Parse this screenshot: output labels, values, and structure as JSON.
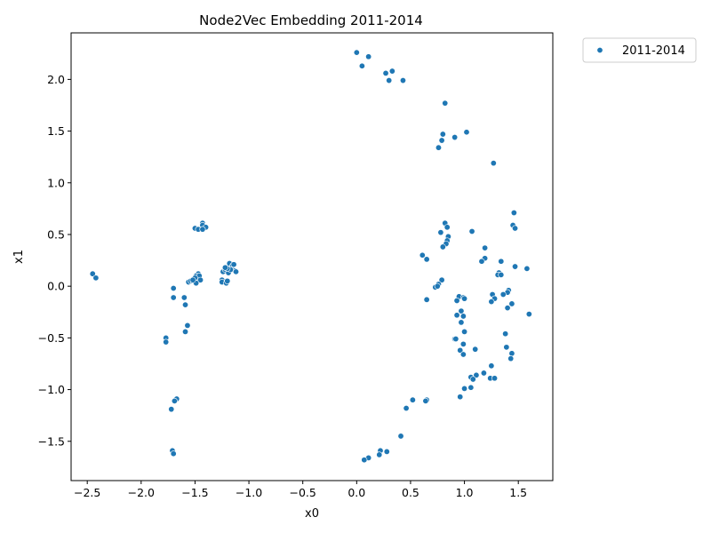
{
  "chart_data": {
    "type": "scatter",
    "title": "Node2Vec Embedding 2011-2014",
    "xlabel": "x0",
    "ylabel": "x1",
    "xlim": [
      -2.65,
      1.82
    ],
    "ylim": [
      -1.88,
      2.45
    ],
    "xticks": [
      -2.5,
      -2.0,
      -1.5,
      -1.0,
      -0.5,
      0.0,
      0.5,
      1.0,
      1.5
    ],
    "xtick_labels": [
      "−2.5",
      "−2.0",
      "−1.5",
      "−1.0",
      "−0.5",
      "0.0",
      "0.5",
      "1.0",
      "1.5"
    ],
    "yticks": [
      -1.5,
      -1.0,
      -0.5,
      0.0,
      0.5,
      1.0,
      1.5,
      2.0
    ],
    "ytick_labels": [
      "−1.5",
      "−1.0",
      "−0.5",
      "0.0",
      "0.5",
      "1.0",
      "1.5",
      "2.0"
    ],
    "grid": false,
    "legend_position": "outside-top-right",
    "series": [
      {
        "name": "2011-2014",
        "color": "#1f77b4",
        "points": [
          [
            0.0,
            2.26
          ],
          [
            0.11,
            2.22
          ],
          [
            0.05,
            2.13
          ],
          [
            0.27,
            2.06
          ],
          [
            0.33,
            2.08
          ],
          [
            0.3,
            1.99
          ],
          [
            0.43,
            1.99
          ],
          [
            0.82,
            1.77
          ],
          [
            1.02,
            1.49
          ],
          [
            0.8,
            1.47
          ],
          [
            0.91,
            1.44
          ],
          [
            0.79,
            1.41
          ],
          [
            0.76,
            1.34
          ],
          [
            1.27,
            1.19
          ],
          [
            -2.45,
            0.12
          ],
          [
            -2.42,
            0.08
          ],
          [
            -1.7,
            -0.02
          ],
          [
            -1.7,
            -0.11
          ],
          [
            -1.6,
            -0.11
          ],
          [
            -1.59,
            -0.18
          ],
          [
            -1.57,
            -0.38
          ],
          [
            -1.59,
            -0.44
          ],
          [
            -1.77,
            -0.5
          ],
          [
            -1.77,
            -0.54
          ],
          [
            -1.67,
            -1.09
          ],
          [
            -1.69,
            -1.11
          ],
          [
            -1.72,
            -1.19
          ],
          [
            -1.71,
            -1.59
          ],
          [
            -1.7,
            -1.62
          ],
          [
            -1.5,
            0.56
          ],
          [
            -1.47,
            0.55
          ],
          [
            -1.43,
            0.61
          ],
          [
            -1.43,
            0.59
          ],
          [
            -1.4,
            0.57
          ],
          [
            -1.43,
            0.55
          ],
          [
            -1.56,
            0.04
          ],
          [
            -1.54,
            0.05
          ],
          [
            -1.52,
            0.05
          ],
          [
            -1.5,
            0.04
          ],
          [
            -1.48,
            0.07
          ],
          [
            -1.47,
            0.12
          ],
          [
            -1.49,
            0.1
          ],
          [
            -1.46,
            0.1
          ],
          [
            -1.5,
            0.08
          ],
          [
            -1.45,
            0.06
          ],
          [
            -1.49,
            0.03
          ],
          [
            -1.52,
            0.06
          ],
          [
            -1.25,
            0.06
          ],
          [
            -1.25,
            0.04
          ],
          [
            -1.24,
            0.14
          ],
          [
            -1.22,
            0.16
          ],
          [
            -1.21,
            0.03
          ],
          [
            -1.2,
            0.05
          ],
          [
            -1.18,
            0.22
          ],
          [
            -1.16,
            0.18
          ],
          [
            -1.15,
            0.2
          ],
          [
            -1.14,
            0.21
          ],
          [
            -1.13,
            0.15
          ],
          [
            -1.12,
            0.14
          ],
          [
            -1.19,
            0.13
          ],
          [
            -1.17,
            0.16
          ],
          [
            -1.2,
            0.17
          ],
          [
            -1.22,
            0.18
          ],
          [
            1.46,
            0.71
          ],
          [
            1.45,
            0.59
          ],
          [
            1.47,
            0.56
          ],
          [
            0.82,
            0.61
          ],
          [
            0.84,
            0.57
          ],
          [
            0.78,
            0.52
          ],
          [
            1.07,
            0.53
          ],
          [
            0.85,
            0.48
          ],
          [
            0.84,
            0.44
          ],
          [
            0.83,
            0.41
          ],
          [
            0.8,
            0.38
          ],
          [
            1.19,
            0.37
          ],
          [
            0.61,
            0.3
          ],
          [
            0.65,
            0.26
          ],
          [
            1.19,
            0.27
          ],
          [
            1.16,
            0.24
          ],
          [
            1.34,
            0.24
          ],
          [
            1.47,
            0.19
          ],
          [
            1.58,
            0.17
          ],
          [
            1.32,
            0.13
          ],
          [
            1.31,
            0.11
          ],
          [
            1.34,
            0.11
          ],
          [
            0.79,
            0.06
          ],
          [
            0.76,
            0.02
          ],
          [
            0.73,
            -0.01
          ],
          [
            0.75,
            0.0
          ],
          [
            1.41,
            -0.04
          ],
          [
            1.4,
            -0.06
          ],
          [
            1.36,
            -0.08
          ],
          [
            1.26,
            -0.08
          ],
          [
            0.95,
            -0.1
          ],
          [
            0.99,
            -0.11
          ],
          [
            1.0,
            -0.12
          ],
          [
            0.93,
            -0.14
          ],
          [
            0.65,
            -0.13
          ],
          [
            1.28,
            -0.12
          ],
          [
            1.25,
            -0.15
          ],
          [
            1.44,
            -0.17
          ],
          [
            1.4,
            -0.21
          ],
          [
            0.97,
            -0.24
          ],
          [
            0.93,
            -0.28
          ],
          [
            0.99,
            -0.29
          ],
          [
            1.6,
            -0.27
          ],
          [
            0.97,
            -0.35
          ],
          [
            1.0,
            -0.44
          ],
          [
            1.38,
            -0.46
          ],
          [
            0.91,
            -0.51
          ],
          [
            0.92,
            -0.51
          ],
          [
            0.99,
            -0.56
          ],
          [
            1.39,
            -0.59
          ],
          [
            0.96,
            -0.62
          ],
          [
            1.1,
            -0.61
          ],
          [
            0.99,
            -0.66
          ],
          [
            1.44,
            -0.65
          ],
          [
            1.43,
            -0.7
          ],
          [
            1.25,
            -0.77
          ],
          [
            1.18,
            -0.84
          ],
          [
            1.11,
            -0.86
          ],
          [
            1.06,
            -0.88
          ],
          [
            1.08,
            -0.9
          ],
          [
            1.24,
            -0.89
          ],
          [
            1.28,
            -0.89
          ],
          [
            1.0,
            -0.99
          ],
          [
            1.06,
            -0.98
          ],
          [
            0.96,
            -1.07
          ],
          [
            0.52,
            -1.1
          ],
          [
            0.65,
            -1.1
          ],
          [
            0.64,
            -1.11
          ],
          [
            0.46,
            -1.18
          ],
          [
            0.41,
            -1.45
          ],
          [
            0.22,
            -1.59
          ],
          [
            0.28,
            -1.6
          ],
          [
            0.21,
            -1.63
          ],
          [
            0.11,
            -1.66
          ],
          [
            0.07,
            -1.68
          ]
        ]
      }
    ]
  }
}
